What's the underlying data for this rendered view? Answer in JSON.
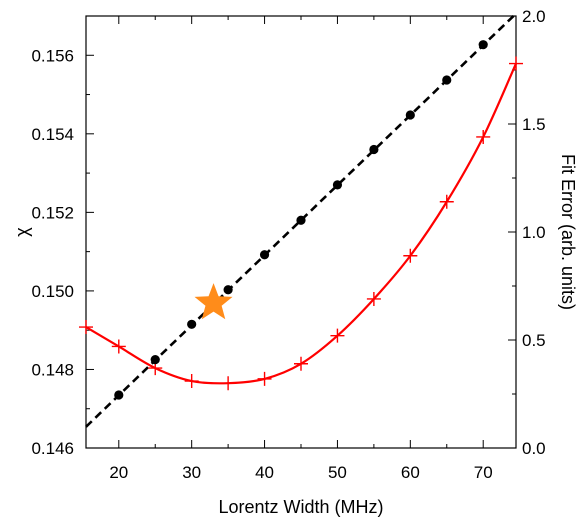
{
  "chart_data": {
    "type": "line",
    "title": "",
    "xlabel": "Lorentz Width (MHz)",
    "ylabel_left": "χ",
    "ylabel_right": "Fit Error (arb. units)",
    "xlim": [
      15.5,
      74.5
    ],
    "ylim_left": [
      0.146,
      0.157
    ],
    "ylim_right": [
      0.0,
      2.0
    ],
    "x_ticks": [
      20,
      30,
      40,
      50,
      60,
      70
    ],
    "x_tick_labels": [
      "20",
      "30",
      "40",
      "50",
      "60",
      "70"
    ],
    "y_left_ticks": [
      0.146,
      0.148,
      0.15,
      0.152,
      0.154,
      0.156
    ],
    "y_left_tick_labels": [
      "0.146",
      "0.148",
      "0.150",
      "0.152",
      "0.154",
      "0.156"
    ],
    "y_right_ticks": [
      0.0,
      0.5,
      1.0,
      1.5,
      2.0
    ],
    "y_right_tick_labels": [
      "0.0",
      "0.5",
      "1.0",
      "1.5",
      "2.0"
    ],
    "grid": false,
    "legend": "none",
    "series": [
      {
        "axis": "left",
        "marker": "circle",
        "color": "#000000",
        "x": [
          20,
          25,
          30,
          35,
          40,
          45,
          50,
          55,
          60,
          65,
          70
        ],
        "y": [
          0.14735,
          0.14825,
          0.14915,
          0.15003,
          0.15092,
          0.1518,
          0.1527,
          0.1536,
          0.15448,
          0.15537,
          0.15627
        ]
      },
      {
        "axis": "left",
        "style": "dashed-fit",
        "color": "#000000",
        "x": [
          15.5,
          74.5
        ],
        "y": [
          0.14654,
          0.15706
        ]
      },
      {
        "axis": "right",
        "marker": "plus",
        "color": "#ff0000",
        "x": [
          15.5,
          20,
          25,
          30,
          35,
          40,
          45,
          50,
          55,
          60,
          65,
          70,
          74.5
        ],
        "y": [
          0.56,
          0.47,
          0.37,
          0.31,
          0.3,
          0.32,
          0.39,
          0.52,
          0.69,
          0.89,
          1.14,
          1.44,
          1.78
        ]
      }
    ],
    "annotation": {
      "marker": "star",
      "color": "#ff8c1a",
      "x": 33,
      "y": 0.14969
    }
  }
}
